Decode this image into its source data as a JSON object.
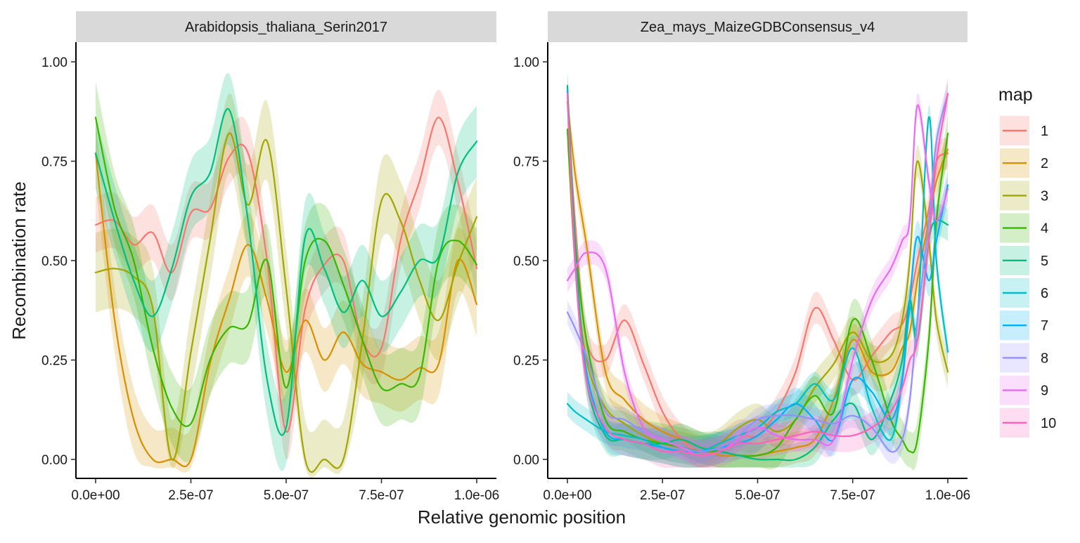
{
  "chart_data": {
    "type": "line",
    "xlabel": "Relative genomic position",
    "ylabel": "Recombination rate",
    "legend": {
      "title": "map",
      "placement": "right",
      "entries": [
        "1",
        "2",
        "3",
        "4",
        "5",
        "6",
        "7",
        "8",
        "9",
        "10"
      ]
    },
    "colors": {
      "1": "#F8766D",
      "2": "#D89000",
      "3": "#A3A500",
      "4": "#39B600",
      "5": "#00BF7D",
      "6": "#00BFC4",
      "7": "#00B0F6",
      "8": "#9590FF",
      "9": "#E76BF3",
      "10": "#FF62BC"
    },
    "xlim": [
      0,
      1e-06
    ],
    "ylim": [
      0,
      1
    ],
    "x_ticks": [
      0,
      2.5e-07,
      5e-07,
      7.5e-07,
      1e-06
    ],
    "x_tick_labels": [
      "0.0e+00",
      "2.5e-07",
      "5.0e-07",
      "7.5e-07",
      "1.0e-06"
    ],
    "y_ticks": [
      0,
      0.25,
      0.5,
      0.75,
      1
    ],
    "y_tick_labels": [
      "0.00",
      "0.25",
      "0.50",
      "0.75",
      "1.00"
    ],
    "grid": false,
    "panels": [
      {
        "strip": "Arabidopsis_thaliana_Serin2017",
        "x": [
          0,
          5e-08,
          1e-07,
          1.5e-07,
          2e-07,
          2.5e-07,
          3e-07,
          3.5e-07,
          4e-07,
          4.5e-07,
          5e-07,
          5.5e-07,
          6e-07,
          6.5e-07,
          7e-07,
          7.5e-07,
          8e-07,
          8.5e-07,
          9e-07,
          9.5e-07,
          1e-06
        ],
        "series": [
          {
            "name": "1",
            "values": [
              0.59,
              0.6,
              0.54,
              0.57,
              0.47,
              0.62,
              0.63,
              0.76,
              0.77,
              0.5,
              0.07,
              0.38,
              0.49,
              0.5,
              0.3,
              0.28,
              0.55,
              0.7,
              0.86,
              0.7,
              0.48
            ],
            "band": 0.07
          },
          {
            "name": "2",
            "values": [
              0.77,
              0.35,
              0.1,
              0.0,
              0.0,
              0.0,
              0.24,
              0.4,
              0.54,
              0.4,
              0.22,
              0.35,
              0.25,
              0.32,
              0.24,
              0.22,
              0.2,
              0.23,
              0.24,
              0.5,
              0.39
            ],
            "band": 0.08
          },
          {
            "name": "3",
            "values": [
              0.47,
              0.48,
              0.46,
              0.38,
              0.0,
              0.27,
              0.55,
              0.82,
              0.64,
              0.8,
              0.43,
              0.0,
              0.0,
              0.0,
              0.3,
              0.65,
              0.6,
              0.45,
              0.35,
              0.49,
              0.61
            ],
            "band": 0.1
          },
          {
            "name": "4",
            "values": [
              0.86,
              0.63,
              0.5,
              0.28,
              0.13,
              0.09,
              0.25,
              0.33,
              0.34,
              0.5,
              0.18,
              0.5,
              0.55,
              0.44,
              0.3,
              0.18,
              0.19,
              0.21,
              0.5,
              0.55,
              0.49
            ],
            "band": 0.09
          },
          {
            "name": "5",
            "values": [
              0.77,
              0.6,
              0.45,
              0.36,
              0.48,
              0.66,
              0.72,
              0.88,
              0.6,
              0.2,
              0.08,
              0.56,
              0.48,
              0.37,
              0.45,
              0.36,
              0.42,
              0.5,
              0.51,
              0.72,
              0.8
            ],
            "band": 0.09
          }
        ]
      },
      {
        "strip": "Zea_mays_MaizeGDBConsensus_v4",
        "x": [
          0,
          2e-08,
          5e-08,
          1e-07,
          1.5e-07,
          2e-07,
          2.5e-07,
          3e-07,
          3.5e-07,
          4e-07,
          4.5e-07,
          5e-07,
          5.5e-07,
          6e-07,
          6.5e-07,
          7e-07,
          7.5e-07,
          8e-07,
          8.5e-07,
          8.8e-07,
          9e-07,
          9.2e-07,
          9.5e-07,
          9.7e-07,
          1e-06
        ],
        "series": [
          {
            "name": "1",
            "values": [
              0.9,
              0.6,
              0.3,
              0.25,
              0.35,
              0.24,
              0.12,
              0.05,
              0.02,
              0.03,
              0.06,
              0.06,
              0.12,
              0.22,
              0.38,
              0.3,
              0.2,
              0.26,
              0.32,
              0.34,
              0.4,
              0.5,
              0.63,
              0.75,
              0.77
            ],
            "band": 0.04
          },
          {
            "name": "2",
            "values": [
              0.9,
              0.72,
              0.54,
              0.22,
              0.15,
              0.1,
              0.07,
              0.05,
              0.03,
              0.01,
              0.01,
              0.01,
              0.02,
              0.03,
              0.05,
              0.15,
              0.3,
              0.22,
              0.22,
              0.28,
              0.32,
              0.45,
              0.6,
              0.7,
              0.78
            ],
            "band": 0.04
          },
          {
            "name": "3",
            "values": [
              0.83,
              0.5,
              0.25,
              0.13,
              0.09,
              0.06,
              0.04,
              0.03,
              0.02,
              0.04,
              0.08,
              0.1,
              0.07,
              0.1,
              0.18,
              0.24,
              0.32,
              0.25,
              0.26,
              0.35,
              0.5,
              0.75,
              0.55,
              0.35,
              0.22
            ],
            "band": 0.04
          },
          {
            "name": "4",
            "values": [
              0.83,
              0.55,
              0.3,
              0.1,
              0.07,
              0.05,
              0.04,
              0.03,
              0.02,
              0.02,
              0.01,
              0.01,
              0.03,
              0.1,
              0.16,
              0.12,
              0.35,
              0.25,
              0.1,
              0.05,
              0.02,
              0.05,
              0.3,
              0.6,
              0.82
            ],
            "band": 0.05
          },
          {
            "name": "5",
            "values": [
              0.94,
              0.55,
              0.2,
              0.06,
              0.05,
              0.04,
              0.04,
              0.05,
              0.03,
              0.02,
              0.01,
              0.0,
              0.0,
              0.0,
              0.03,
              0.1,
              0.14,
              0.05,
              0.15,
              0.25,
              0.4,
              0.3,
              0.55,
              0.6,
              0.59
            ],
            "band": 0.04
          },
          {
            "name": "6",
            "values": [
              0.14,
              0.12,
              0.1,
              0.07,
              0.06,
              0.05,
              0.03,
              0.02,
              0.02,
              0.04,
              0.06,
              0.08,
              0.12,
              0.14,
              0.19,
              0.15,
              0.28,
              0.13,
              0.05,
              0.2,
              0.38,
              0.35,
              0.86,
              0.5,
              0.27
            ],
            "band": 0.03
          },
          {
            "name": "7",
            "values": [
              0.93,
              0.5,
              0.22,
              0.07,
              0.05,
              0.04,
              0.03,
              0.02,
              0.02,
              0.03,
              0.04,
              0.06,
              0.1,
              0.14,
              0.1,
              0.05,
              0.2,
              0.17,
              0.1,
              0.2,
              0.4,
              0.56,
              0.45,
              0.55,
              0.69
            ],
            "band": 0.04
          },
          {
            "name": "8",
            "values": [
              0.37,
              0.33,
              0.26,
              0.12,
              0.1,
              0.07,
              0.05,
              0.03,
              0.02,
              0.03,
              0.06,
              0.1,
              0.11,
              0.11,
              0.1,
              0.09,
              0.11,
              0.08,
              0.02,
              0.05,
              0.15,
              0.35,
              0.6,
              0.8,
              0.92
            ],
            "band": 0.03
          },
          {
            "name": "9",
            "values": [
              0.45,
              0.48,
              0.52,
              0.48,
              0.22,
              0.08,
              0.05,
              0.03,
              0.01,
              0.02,
              0.05,
              0.08,
              0.06,
              0.05,
              0.05,
              0.05,
              0.25,
              0.4,
              0.48,
              0.55,
              0.6,
              0.89,
              0.7,
              0.6,
              0.68
            ],
            "band": 0.03
          },
          {
            "name": "10",
            "values": [
              0.92,
              0.5,
              0.2,
              0.08,
              0.05,
              0.04,
              0.02,
              0.02,
              0.01,
              0.02,
              0.04,
              0.04,
              0.05,
              0.06,
              0.07,
              0.06,
              0.06,
              0.08,
              0.12,
              0.18,
              0.25,
              0.3,
              0.55,
              0.75,
              0.92
            ],
            "band": 0.04
          }
        ]
      }
    ]
  }
}
